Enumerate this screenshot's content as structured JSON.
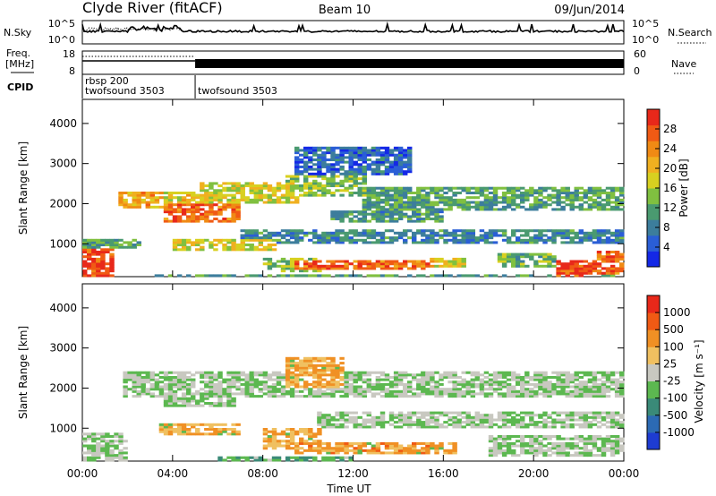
{
  "header": {
    "station": "Clyde River (fitACF)",
    "beam": "Beam 10",
    "date": "09/Jun/2014"
  },
  "noise_panel": {
    "left_label": "N.Sky",
    "right_label": "N.Search",
    "left_ticks": [
      "10^5",
      "10^0"
    ],
    "right_ticks": [
      "10^5",
      "10^0"
    ]
  },
  "freq_panel": {
    "left_label_1": "Freq.",
    "left_label_2": "[MHz]",
    "left_ticks": [
      "18",
      "8"
    ],
    "right_label": "Nave",
    "right_ticks": [
      "60",
      "0"
    ]
  },
  "cpid_panel": {
    "label": "CPID",
    "segments": [
      {
        "t_start": 0.0,
        "t_end": 5.0,
        "lines": [
          "rbsp 200",
          "twofsound 3503"
        ]
      },
      {
        "t_start": 5.0,
        "t_end": 24.0,
        "lines": [
          "twofsound 3503"
        ]
      }
    ]
  },
  "chart_data": [
    {
      "type": "heatmap",
      "name": "power",
      "ylabel": "Slant Range [km]",
      "xlabel": "",
      "x_range_hours": [
        0,
        24
      ],
      "ylim": [
        180,
        4600
      ],
      "ytick_labels": [
        "1000",
        "2000",
        "3000",
        "4000"
      ],
      "ytick_values": [
        1000,
        2000,
        3000,
        4000
      ],
      "colorbar": {
        "label": "Power [dB]",
        "tick_labels": [
          "28",
          "24",
          "20",
          "16",
          "12",
          "8",
          "4"
        ],
        "tick_values": [
          28,
          24,
          20,
          16,
          12,
          8,
          4
        ],
        "range": [
          0,
          32
        ],
        "colors": [
          "#1428e6",
          "#2a5ed6",
          "#3c7d9c",
          "#4a9a70",
          "#80c040",
          "#d8d020",
          "#f0b020",
          "#f08a14",
          "#f05a14",
          "#e8281a"
        ]
      },
      "regions": [
        {
          "t0": 0.0,
          "t1": 1.45,
          "r0": 200,
          "r1": 860,
          "level": 0.95
        },
        {
          "t0": 0.0,
          "t1": 2.5,
          "r0": 860,
          "r1": 1100,
          "level": 0.35
        },
        {
          "t0": 1.7,
          "t1": 3.6,
          "r0": 1900,
          "r1": 2300,
          "level": 0.7
        },
        {
          "t0": 3.6,
          "t1": 7.0,
          "r0": 1550,
          "r1": 2000,
          "level": 0.85
        },
        {
          "t0": 3.3,
          "t1": 5.2,
          "r0": 2000,
          "r1": 2300,
          "level": 0.6
        },
        {
          "t0": 5.2,
          "t1": 9.6,
          "r0": 2000,
          "r1": 2550,
          "level": 0.55
        },
        {
          "t0": 9.0,
          "t1": 12.5,
          "r0": 2200,
          "r1": 2700,
          "level": 0.45
        },
        {
          "t0": 12.5,
          "t1": 24.0,
          "r0": 1850,
          "r1": 2400,
          "level": 0.35
        },
        {
          "t0": 11.0,
          "t1": 16.0,
          "r0": 1550,
          "r1": 1850,
          "level": 0.3
        },
        {
          "t0": 4.0,
          "t1": 8.5,
          "r0": 850,
          "r1": 1100,
          "level": 0.55
        },
        {
          "t0": 7.0,
          "t1": 24.0,
          "r0": 1000,
          "r1": 1350,
          "level": 0.25
        },
        {
          "t0": 8.0,
          "t1": 10.5,
          "r0": 300,
          "r1": 650,
          "level": 0.45
        },
        {
          "t0": 9.5,
          "t1": 15.5,
          "r0": 380,
          "r1": 620,
          "level": 0.85
        },
        {
          "t0": 15.5,
          "t1": 17.0,
          "r0": 400,
          "r1": 650,
          "level": 0.55
        },
        {
          "t0": 18.5,
          "t1": 21.0,
          "r0": 420,
          "r1": 750,
          "level": 0.4
        },
        {
          "t0": 21.0,
          "t1": 22.8,
          "r0": 200,
          "r1": 600,
          "level": 0.95
        },
        {
          "t0": 22.8,
          "t1": 24.0,
          "r0": 250,
          "r1": 800,
          "level": 0.85
        },
        {
          "t0": 9.5,
          "t1": 14.5,
          "r0": 2700,
          "r1": 3400,
          "level": 0.15
        },
        {
          "t0": 3.0,
          "t1": 24.0,
          "r0": 180,
          "r1": 230,
          "level": 0.35
        }
      ]
    },
    {
      "type": "heatmap",
      "name": "velocity",
      "ylabel": "Slant Range [km]",
      "xlabel": "Time UT",
      "x_range_hours": [
        0,
        24
      ],
      "xtick_labels": [
        "00:00",
        "04:00",
        "08:00",
        "12:00",
        "16:00",
        "20:00",
        "00:00"
      ],
      "xtick_values": [
        0,
        4,
        8,
        12,
        16,
        20,
        24
      ],
      "ylim": [
        180,
        4600
      ],
      "ytick_labels": [
        "1000",
        "2000",
        "3000",
        "4000"
      ],
      "ytick_values": [
        1000,
        2000,
        3000,
        4000
      ],
      "colorbar": {
        "label": "Velocity [m s⁻¹]",
        "tick_labels": [
          "1000",
          "500",
          "100",
          "25",
          "-25",
          "-100",
          "-500",
          "-1000"
        ],
        "colors": [
          "#1e3cd2",
          "#2c6ab4",
          "#3a8a78",
          "#5cb850",
          "#c8c8c0",
          "#f0c060",
          "#f09024",
          "#f05a14",
          "#e8281a"
        ]
      },
      "regions": [
        {
          "t0": 0.0,
          "t1": 2.0,
          "r0": 200,
          "r1": 900,
          "level": 0.45
        },
        {
          "t0": 1.8,
          "t1": 24.0,
          "r0": 1800,
          "r1": 2400,
          "level": 0.45
        },
        {
          "t0": 3.6,
          "t1": 6.8,
          "r0": 1550,
          "r1": 1850,
          "level": 0.45
        },
        {
          "t0": 3.5,
          "t1": 7.0,
          "r0": 800,
          "r1": 1150,
          "level": 0.7
        },
        {
          "t0": 9.0,
          "t1": 11.5,
          "r0": 2000,
          "r1": 2800,
          "level": 0.7
        },
        {
          "t0": 8.0,
          "t1": 10.5,
          "r0": 500,
          "r1": 1000,
          "level": 0.7
        },
        {
          "t0": 9.5,
          "t1": 16.5,
          "r0": 350,
          "r1": 650,
          "level": 0.72
        },
        {
          "t0": 10.5,
          "t1": 24.0,
          "r0": 1000,
          "r1": 1400,
          "level": 0.45
        },
        {
          "t0": 18.0,
          "t1": 24.0,
          "r0": 300,
          "r1": 800,
          "level": 0.45
        },
        {
          "t0": 6.0,
          "t1": 12.0,
          "r0": 180,
          "r1": 320,
          "level": 0.35
        }
      ]
    }
  ]
}
